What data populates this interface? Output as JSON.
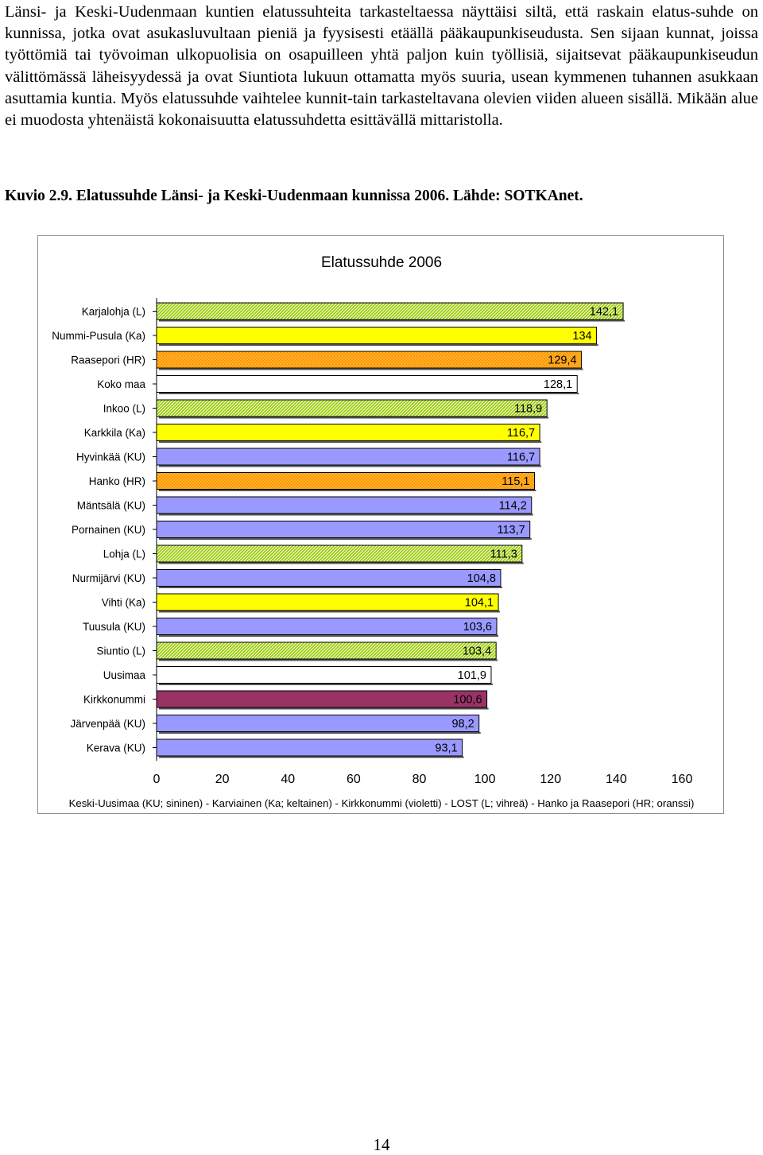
{
  "body_paragraph": "Länsi- ja Keski-Uudenmaan kuntien elatussuhteita tarkasteltaessa näyttäisi siltä, että raskain elatus-suhde on kunnissa, jotka ovat asukasluvultaan pieniä ja fyysisesti etäällä pääkaupunkiseudusta. Sen sijaan kunnat, joissa työttömiä tai työvoiman ulkopuolisia on osapuilleen yhtä paljon kuin työllisiä, sijaitsevat pääkaupunkiseudun välittömässä läheisyydessä ja ovat Siuntiota lukuun ottamatta myös suuria, usean kymmenen tuhannen asukkaan asuttamia kuntia. Myös elatussuhde vaihtelee kunnit-tain tarkasteltavana olevien viiden alueen sisällä. Mikään alue ei muodosta yhtenäistä kokonaisuutta elatussuhdetta esittävällä mittaristolla.",
  "figure_caption": "Kuvio 2.9. Elatussuhde Länsi- ja Keski-Uudenmaan kunnissa 2006. Lähde: SOTKAnet.",
  "page_number": "14",
  "colors": {
    "KU": "#9999ff",
    "Ka": "#ffff00",
    "violetti": "#993366",
    "L": "#99cc00",
    "HR": "#ff9900",
    "plain": "#ffffff"
  },
  "chart_data": {
    "type": "bar",
    "orientation": "horizontal",
    "title": "Elatussuhde 2006",
    "xlim": [
      0,
      160
    ],
    "x_ticks": [
      "0",
      "20",
      "40",
      "60",
      "80",
      "100",
      "120",
      "140",
      "160"
    ],
    "legend_note": "Keski-Uusimaa (KU; sininen) - Karviainen (Ka; keltainen) - Kirkkonummi (violetti) - LOST (L; vihreä) - Hanko ja Raasepori (HR; oranssi)",
    "categories": [
      "Karjalohja (L)",
      "Nummi-Pusula (Ka)",
      "Raasepori (HR)",
      "Koko maa",
      "Inkoo (L)",
      "Karkkila (Ka)",
      "Hyvinkää (KU)",
      "Hanko (HR)",
      "Mäntsälä (KU)",
      "Pornainen (KU)",
      "Lohja (L)",
      "Nurmijärvi (KU)",
      "Vihti (Ka)",
      "Tuusula (KU)",
      "Siuntio (L)",
      "Uusimaa",
      "Kirkkonummi",
      "Järvenpää (KU)",
      "Kerava (KU)"
    ],
    "values": [
      142.1,
      134,
      129.4,
      128.1,
      118.9,
      116.7,
      116.7,
      115.1,
      114.2,
      113.7,
      111.3,
      104.8,
      104.1,
      103.6,
      103.4,
      101.9,
      100.6,
      98.2,
      93.1
    ],
    "value_labels": [
      "142,1",
      "134",
      "129,4",
      "128,1",
      "118,9",
      "116,7",
      "116,7",
      "115,1",
      "114,2",
      "113,7",
      "111,3",
      "104,8",
      "104,1",
      "103,6",
      "103,4",
      "101,9",
      "100,6",
      "98,2",
      "93,1"
    ],
    "groups": [
      "L",
      "Ka",
      "HR",
      "plain",
      "L",
      "Ka",
      "KU",
      "HR",
      "KU",
      "KU",
      "L",
      "KU",
      "Ka",
      "KU",
      "L",
      "plain",
      "violetti",
      "KU",
      "KU"
    ]
  }
}
